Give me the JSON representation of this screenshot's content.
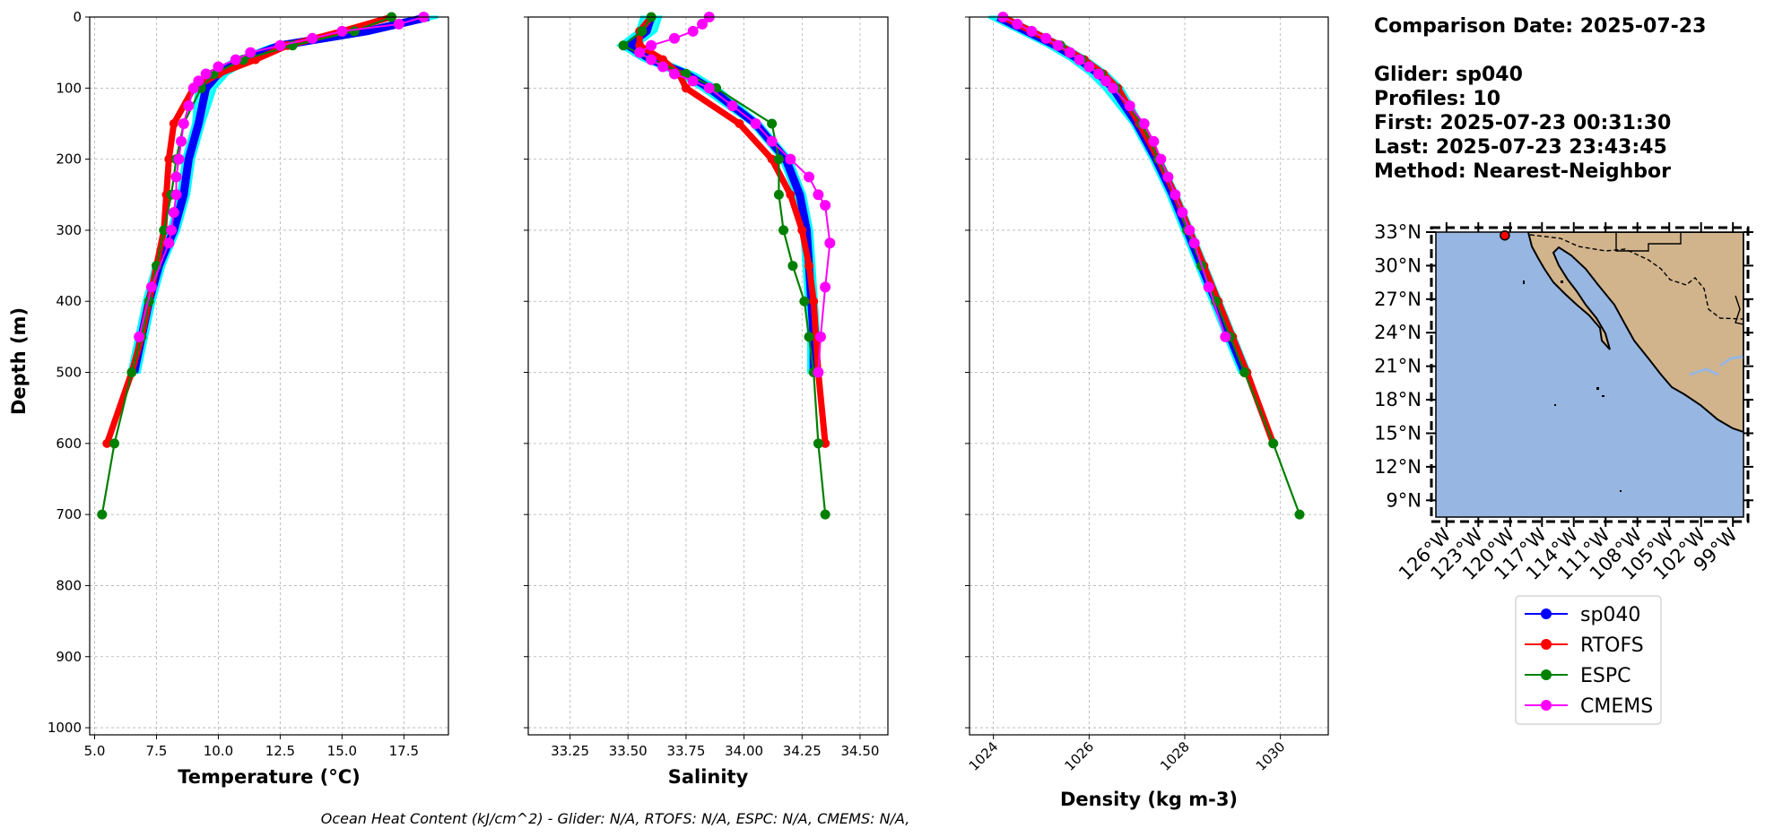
{
  "info": {
    "comparison_date": "Comparison Date: 2025-07-23",
    "glider": "Glider: sp040",
    "profiles": "Profiles: 10",
    "first": "First: 2025-07-23 00:31:30",
    "last": "Last: 2025-07-23 23:43:45",
    "method": "Method: Nearest-Neighbor"
  },
  "footer": "Ocean Heat Content (kJ/cm^2) - Glider: N/A,  RTOFS: N/A,  ESPC: N/A,  CMEMS: N/A,",
  "colors": {
    "sp040": "#0000ff",
    "RTOFS": "#ff0000",
    "ESPC": "#008000",
    "CMEMS": "#ff00ff",
    "glider_raw": "#00ffff",
    "ocean": "#97b6e1",
    "land": "#d2b48c"
  },
  "legend": [
    {
      "name": "sp040",
      "color": "#0000ff"
    },
    {
      "name": "RTOFS",
      "color": "#ff0000"
    },
    {
      "name": "ESPC",
      "color": "#008000"
    },
    {
      "name": "CMEMS",
      "color": "#ff00ff"
    }
  ],
  "chart_data": [
    {
      "type": "line",
      "xlabel": "Temperature (°C)",
      "ylabel": "Depth (m)",
      "xlim": [
        4.8,
        19.3
      ],
      "ylim": [
        1010,
        0
      ],
      "xticks": [
        5.0,
        7.5,
        10.0,
        12.5,
        15.0,
        17.5
      ],
      "xtick_labels": [
        "5.0",
        "7.5",
        "10.0",
        "12.5",
        "15.0",
        "17.5"
      ],
      "yticks": [
        0,
        100,
        200,
        300,
        400,
        500,
        600,
        700,
        800,
        900,
        1000
      ],
      "ytick_labels": [
        "0",
        "100",
        "200",
        "300",
        "400",
        "500",
        "600",
        "700",
        "800",
        "900",
        "1000"
      ],
      "grid": true,
      "series": [
        {
          "name": "sp040",
          "depth": [
            0,
            20,
            40,
            60,
            80,
            100,
            150,
            200,
            250,
            300,
            350,
            400,
            450,
            500
          ],
          "values": [
            18.5,
            16.0,
            12.5,
            11.0,
            10.0,
            9.5,
            9.2,
            8.8,
            8.6,
            8.2,
            7.6,
            7.2,
            6.9,
            6.6
          ]
        },
        {
          "name": "RTOFS",
          "depth": [
            0,
            20,
            40,
            60,
            80,
            100,
            150,
            200,
            250,
            300,
            350,
            400,
            450,
            500,
            600
          ],
          "values": [
            17.0,
            15.0,
            12.8,
            11.5,
            10.0,
            9.0,
            8.2,
            8.0,
            7.9,
            7.8,
            7.5,
            7.2,
            6.9,
            6.5,
            5.5
          ]
        },
        {
          "name": "ESPC",
          "depth": [
            0,
            20,
            40,
            60,
            80,
            100,
            150,
            200,
            250,
            300,
            350,
            400,
            450,
            500,
            600,
            700
          ],
          "values": [
            17.0,
            15.5,
            13.0,
            11.0,
            9.8,
            9.3,
            8.6,
            8.3,
            8.1,
            7.8,
            7.5,
            7.2,
            6.9,
            6.5,
            5.8,
            5.3
          ]
        },
        {
          "name": "CMEMS",
          "depth": [
            0,
            10,
            20,
            30,
            40,
            50,
            60,
            70,
            80,
            90,
            100,
            125,
            150,
            175,
            200,
            225,
            250,
            275,
            300,
            318,
            380,
            450
          ],
          "values": [
            18.3,
            17.3,
            15.0,
            13.8,
            12.5,
            11.3,
            10.7,
            10.0,
            9.5,
            9.2,
            9.0,
            8.8,
            8.6,
            8.5,
            8.4,
            8.3,
            8.3,
            8.2,
            8.1,
            8.0,
            7.3,
            6.8
          ]
        }
      ]
    },
    {
      "type": "line",
      "xlabel": "Salinity",
      "ylabel": "",
      "xlim": [
        33.07,
        34.62
      ],
      "ylim": [
        1010,
        0
      ],
      "xticks": [
        33.25,
        33.5,
        33.75,
        34.0,
        34.25,
        34.5
      ],
      "xtick_labels": [
        "33.25",
        "33.50",
        "33.75",
        "34.00",
        "34.25",
        "34.50"
      ],
      "yticks": [
        0,
        100,
        200,
        300,
        400,
        500,
        600,
        700,
        800,
        900,
        1000
      ],
      "grid": true,
      "series": [
        {
          "name": "sp040",
          "depth": [
            0,
            20,
            40,
            60,
            80,
            100,
            150,
            200,
            250,
            300,
            350,
            400,
            450,
            500
          ],
          "values": [
            33.6,
            33.58,
            33.5,
            33.6,
            33.75,
            33.85,
            34.05,
            34.18,
            34.24,
            34.27,
            34.28,
            34.29,
            34.3,
            34.3
          ]
        },
        {
          "name": "RTOFS",
          "depth": [
            0,
            20,
            40,
            60,
            80,
            100,
            150,
            200,
            250,
            300,
            350,
            400,
            450,
            500,
            600
          ],
          "values": [
            33.6,
            33.55,
            33.55,
            33.65,
            33.72,
            33.75,
            33.98,
            34.12,
            34.2,
            34.25,
            34.28,
            34.3,
            34.31,
            34.32,
            34.35
          ]
        },
        {
          "name": "ESPC",
          "depth": [
            0,
            20,
            40,
            60,
            80,
            100,
            150,
            200,
            250,
            300,
            350,
            400,
            450,
            500,
            600,
            700
          ],
          "values": [
            33.6,
            33.56,
            33.48,
            33.6,
            33.75,
            33.88,
            34.12,
            34.15,
            34.15,
            34.17,
            34.21,
            34.26,
            34.28,
            34.3,
            34.32,
            34.35
          ]
        },
        {
          "name": "CMEMS",
          "depth": [
            0,
            10,
            20,
            30,
            40,
            50,
            60,
            70,
            80,
            90,
            100,
            125,
            150,
            175,
            200,
            225,
            250,
            265,
            318,
            380,
            450,
            500
          ],
          "values": [
            33.85,
            33.82,
            33.78,
            33.7,
            33.6,
            33.55,
            33.6,
            33.65,
            33.7,
            33.78,
            33.85,
            33.95,
            34.05,
            34.12,
            34.2,
            34.28,
            34.32,
            34.35,
            34.37,
            34.35,
            34.33,
            34.32
          ]
        }
      ]
    },
    {
      "type": "line",
      "xlabel": "Density (kg m-3)",
      "ylabel": "",
      "xlim": [
        1023.5,
        1031.0
      ],
      "ylim": [
        1010,
        0
      ],
      "xticks": [
        1024,
        1026,
        1028,
        1030
      ],
      "xtick_labels": [
        "1024",
        "1026",
        "1028",
        "1030"
      ],
      "yticks": [
        0,
        100,
        200,
        300,
        400,
        500,
        600,
        700,
        800,
        900,
        1000
      ],
      "grid": true,
      "series": [
        {
          "name": "sp040",
          "depth": [
            0,
            20,
            40,
            60,
            80,
            100,
            150,
            200,
            250,
            300,
            350,
            400,
            450,
            500
          ],
          "values": [
            1024.1,
            1024.7,
            1025.3,
            1025.8,
            1026.2,
            1026.5,
            1027.0,
            1027.4,
            1027.75,
            1028.05,
            1028.35,
            1028.65,
            1028.95,
            1029.25
          ]
        },
        {
          "name": "RTOFS",
          "depth": [
            0,
            20,
            40,
            60,
            80,
            100,
            150,
            200,
            250,
            300,
            350,
            400,
            450,
            500,
            600
          ],
          "values": [
            1024.2,
            1024.8,
            1025.4,
            1025.9,
            1026.3,
            1026.6,
            1027.05,
            1027.45,
            1027.8,
            1028.1,
            1028.4,
            1028.7,
            1029.0,
            1029.3,
            1029.85
          ]
        },
        {
          "name": "ESPC",
          "depth": [
            0,
            20,
            40,
            60,
            80,
            100,
            150,
            200,
            250,
            300,
            350,
            400,
            450,
            500,
            600,
            700
          ],
          "values": [
            1024.2,
            1024.8,
            1025.4,
            1025.85,
            1026.25,
            1026.55,
            1027.1,
            1027.45,
            1027.8,
            1028.05,
            1028.35,
            1028.65,
            1028.95,
            1029.25,
            1029.85,
            1030.4
          ]
        },
        {
          "name": "CMEMS",
          "depth": [
            0,
            10,
            20,
            30,
            40,
            50,
            60,
            70,
            80,
            90,
            100,
            125,
            150,
            175,
            200,
            225,
            250,
            275,
            300,
            318,
            380,
            450
          ],
          "values": [
            1024.2,
            1024.5,
            1024.8,
            1025.1,
            1025.35,
            1025.6,
            1025.8,
            1026.0,
            1026.2,
            1026.35,
            1026.5,
            1026.85,
            1027.15,
            1027.35,
            1027.5,
            1027.65,
            1027.8,
            1027.95,
            1028.1,
            1028.2,
            1028.5,
            1028.85
          ]
        }
      ]
    }
  ],
  "map": {
    "lat_range": [
      7.5,
      33
    ],
    "lon_range": [
      -127,
      -98
    ],
    "lat_labels": [
      "33°N",
      "30°N",
      "27°N",
      "24°N",
      "21°N",
      "18°N",
      "15°N",
      "12°N",
      "9°N"
    ],
    "lat_values": [
      33,
      30,
      27,
      24,
      21,
      18,
      15,
      12,
      9
    ],
    "lon_labels": [
      "126°W",
      "123°W",
      "120°W",
      "117°W",
      "114°W",
      "111°W",
      "108°W",
      "105°W",
      "102°W",
      "99°W"
    ],
    "lon_values": [
      -126,
      -123,
      -120,
      -117,
      -114,
      -111,
      -108,
      -105,
      -102,
      -99
    ],
    "glider_position": {
      "lat": 32.7,
      "lon": -120.5
    }
  }
}
